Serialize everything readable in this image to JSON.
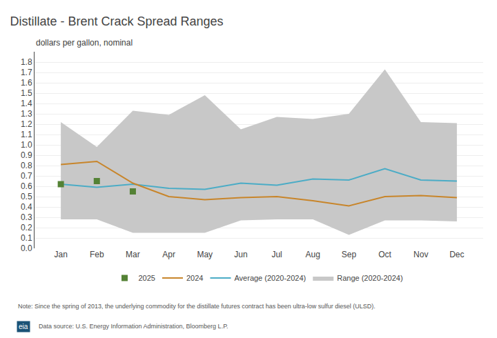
{
  "chart_data": {
    "type": "line",
    "title": "Distillate - Brent Crack Spread Ranges",
    "ylabel": "dollars per gallon, nominal",
    "annotations": [
      "Note: Since the spring of 2013, the underlying commodity for the distillate futures contract has been ultra-low sulfur diesel (ULSD).",
      "eia",
      "Data source: U.S. Energy Information Administration, Bloomberg L.P."
    ],
    "categories": [
      "Jan",
      "Feb",
      "Mar",
      "Apr",
      "May",
      "Jun",
      "Jul",
      "Aug",
      "Sep",
      "Oct",
      "Nov",
      "Dec"
    ],
    "series": [
      {
        "name": "Range (2020-2024)",
        "type": "range",
        "color": "#c8c8c8",
        "lower": [
          0.28,
          0.28,
          0.15,
          0.15,
          0.15,
          0.27,
          0.28,
          0.28,
          0.13,
          0.27,
          0.27,
          0.26
        ],
        "upper": [
          1.22,
          0.98,
          1.33,
          1.29,
          1.48,
          1.15,
          1.27,
          1.25,
          1.3,
          1.73,
          1.22,
          1.21
        ]
      },
      {
        "name": "Average (2020-2024)",
        "type": "line",
        "color": "#4bacc6",
        "values": [
          0.62,
          0.59,
          0.62,
          0.58,
          0.57,
          0.63,
          0.61,
          0.67,
          0.66,
          0.77,
          0.66,
          0.65
        ]
      },
      {
        "name": "2024",
        "type": "line",
        "color": "#c8852a",
        "values": [
          0.81,
          0.84,
          0.63,
          0.5,
          0.47,
          0.49,
          0.5,
          0.46,
          0.41,
          0.5,
          0.51,
          0.49
        ]
      },
      {
        "name": "2025",
        "type": "scatter",
        "marker": "square",
        "color": "#548235",
        "values": [
          0.62,
          0.65,
          0.55,
          null,
          null,
          null,
          null,
          null,
          null,
          null,
          null,
          null
        ]
      }
    ],
    "ylim": [
      0.0,
      1.9
    ],
    "yticks": [
      {
        "value": 0,
        "label": "0.0"
      },
      0.1,
      0.2,
      0.3,
      0.4,
      0.5,
      0.6,
      0.7,
      0.8,
      0.9,
      {
        "value": 1,
        "label": "1.0"
      },
      1.1,
      1.2,
      1.3,
      1.4,
      1.5,
      1.6,
      1.7,
      1.8
    ],
    "grid": true,
    "legend": "bottom"
  }
}
